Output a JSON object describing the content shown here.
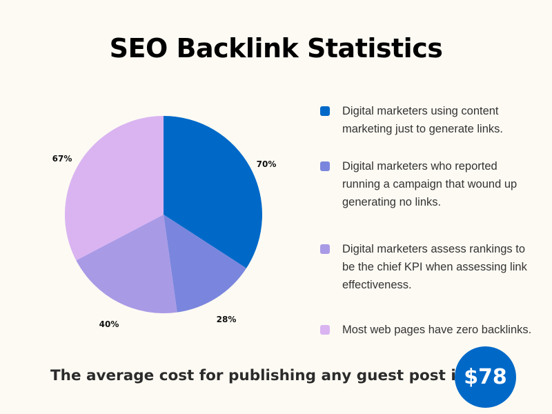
{
  "chart_data": {
    "type": "pie",
    "title": "SEO Backlink Statistics",
    "slices": [
      {
        "label": "70%",
        "value": 70,
        "color": "#0069c8",
        "legend": "Digital marketers using content marketing just to generate links."
      },
      {
        "label": "28%",
        "value": 28,
        "color": "#7a86dd",
        "legend": "Digital marketers who reported running a campaign that wound up generating no links."
      },
      {
        "label": "40%",
        "value": 40,
        "color": "#a99ae6",
        "legend": "Digital marketers assess rankings to be the chief KPI when assessing link effectiveness."
      },
      {
        "label": "67%",
        "value": 67,
        "color": "#d9b4f1",
        "legend": "Most web pages have zero backlinks."
      }
    ]
  },
  "footer": {
    "text": "The average cost for publishing any guest post is",
    "price": "$78"
  }
}
